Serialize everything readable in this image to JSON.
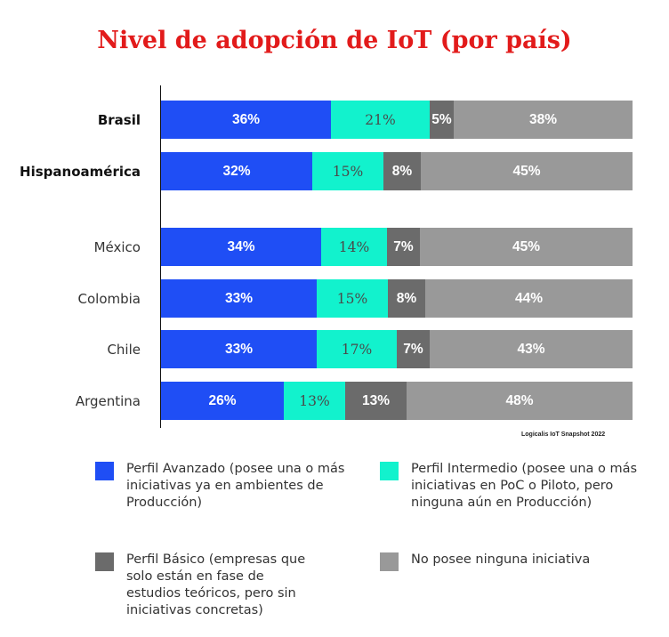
{
  "chart_data": {
    "type": "bar",
    "orientation": "horizontal",
    "stacked": true,
    "title": "Nivel de adopción de IoT (por país)",
    "categories": [
      "Brasil",
      "Hispanoamérica",
      "México",
      "Colombia",
      "Chile",
      "Argentina"
    ],
    "series": [
      {
        "name": "Perfil Avanzado (posee una o más iniciativas ya en ambientes de Producción)",
        "color": "#1f4ef5",
        "values": [
          36,
          32,
          34,
          33,
          33,
          26
        ],
        "labels": [
          "36%",
          "32%",
          "34%",
          "33%",
          "33%",
          "26%"
        ]
      },
      {
        "name": "Perfil Intermedio (posee una o más iniciativas en PoC o Piloto, pero ninguna aún en Producción)",
        "color": "#12f2cd",
        "values": [
          21,
          15,
          14,
          15,
          17,
          13
        ],
        "labels": [
          "21%",
          "15%",
          "14%",
          "15%",
          "17%",
          "13%"
        ]
      },
      {
        "name": "Perfil Básico (empresas que solo están en fase de estudios teóricos, pero sin iniciativas concretas)",
        "color": "#6b6b6b",
        "values": [
          5,
          8,
          7,
          8,
          7,
          13
        ],
        "labels": [
          "5%",
          "8%",
          "7%",
          "8%",
          "7%",
          "13%"
        ]
      },
      {
        "name": "No posee ninguna iniciativa",
        "color": "#999999",
        "values": [
          38,
          45,
          45,
          44,
          43,
          48
        ],
        "labels": [
          "38%",
          "45%",
          "45%",
          "44%",
          "43%",
          "48%"
        ]
      }
    ],
    "xlim": [
      0,
      100
    ],
    "grid": false,
    "legend_position": "bottom",
    "source_note": "Logicalis IoT Snapshot 2022"
  }
}
